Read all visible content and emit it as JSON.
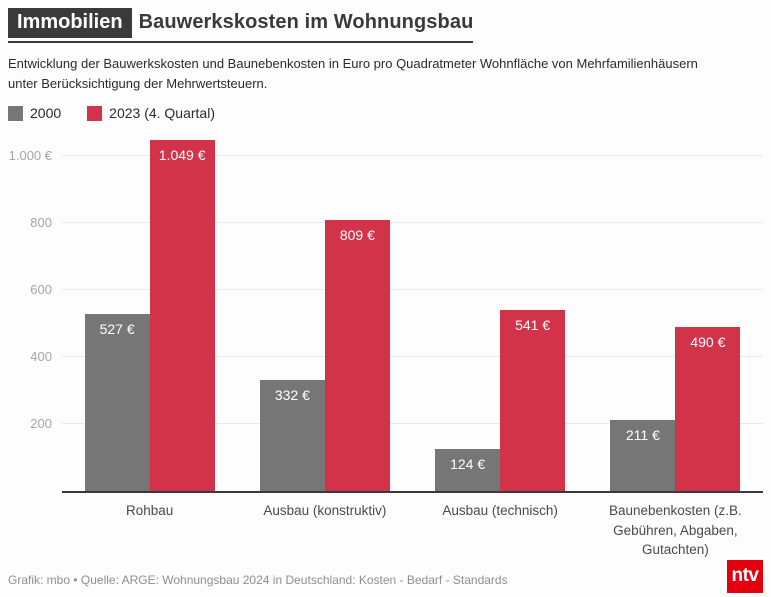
{
  "header": {
    "badge": "Immobilien",
    "title": "Bauwerkskosten im Wohnungsbau"
  },
  "subtitle": "Entwicklung der Bauwerkskosten und Baunebenkosten in Euro pro Quadratmeter Wohnfläche von Mehrfamilienhäusern unter Berücksichtigung der Mehrwertsteuern.",
  "legend": [
    {
      "label": "2000",
      "color": "#767676"
    },
    {
      "label": "2023 (4. Quartal)",
      "color": "#d23348"
    }
  ],
  "chart_data": {
    "type": "bar",
    "title": "Bauwerkskosten im Wohnungsbau",
    "categories": [
      "Rohbau",
      "Ausbau (konstruktiv)",
      "Ausbau (technisch)",
      "Baunebenkosten (z.B. Gebühren, Abgaben, Gutachten)"
    ],
    "series": [
      {
        "name": "2000",
        "color": "#767676",
        "values": [
          527,
          332,
          124,
          211
        ],
        "labels": [
          "527 €",
          "332 €",
          "124 €",
          "211 €"
        ]
      },
      {
        "name": "2023 (4. Quartal)",
        "color": "#d23348",
        "values": [
          1049,
          809,
          541,
          490
        ],
        "labels": [
          "1.049 €",
          "809 €",
          "541 €",
          "490 €"
        ]
      }
    ],
    "xlabel": "",
    "ylabel": "Euro pro Quadratmeter Wohnfläche",
    "ylim": [
      0,
      1050
    ],
    "yticks": [
      {
        "value": 200,
        "label": "200"
      },
      {
        "value": 400,
        "label": "400"
      },
      {
        "value": 600,
        "label": "600"
      },
      {
        "value": 800,
        "label": "800"
      },
      {
        "value": 1000,
        "label": "1.000 €"
      }
    ],
    "grid": true,
    "legend_position": "top-left"
  },
  "footer": {
    "credit": "Grafik: mbo • Quelle: ARGE: Wohnungsbau 2024 in Deutschland: Kosten - Bedarf - Standards",
    "logo_text": "ntv",
    "logo_color": "#e3000f"
  }
}
